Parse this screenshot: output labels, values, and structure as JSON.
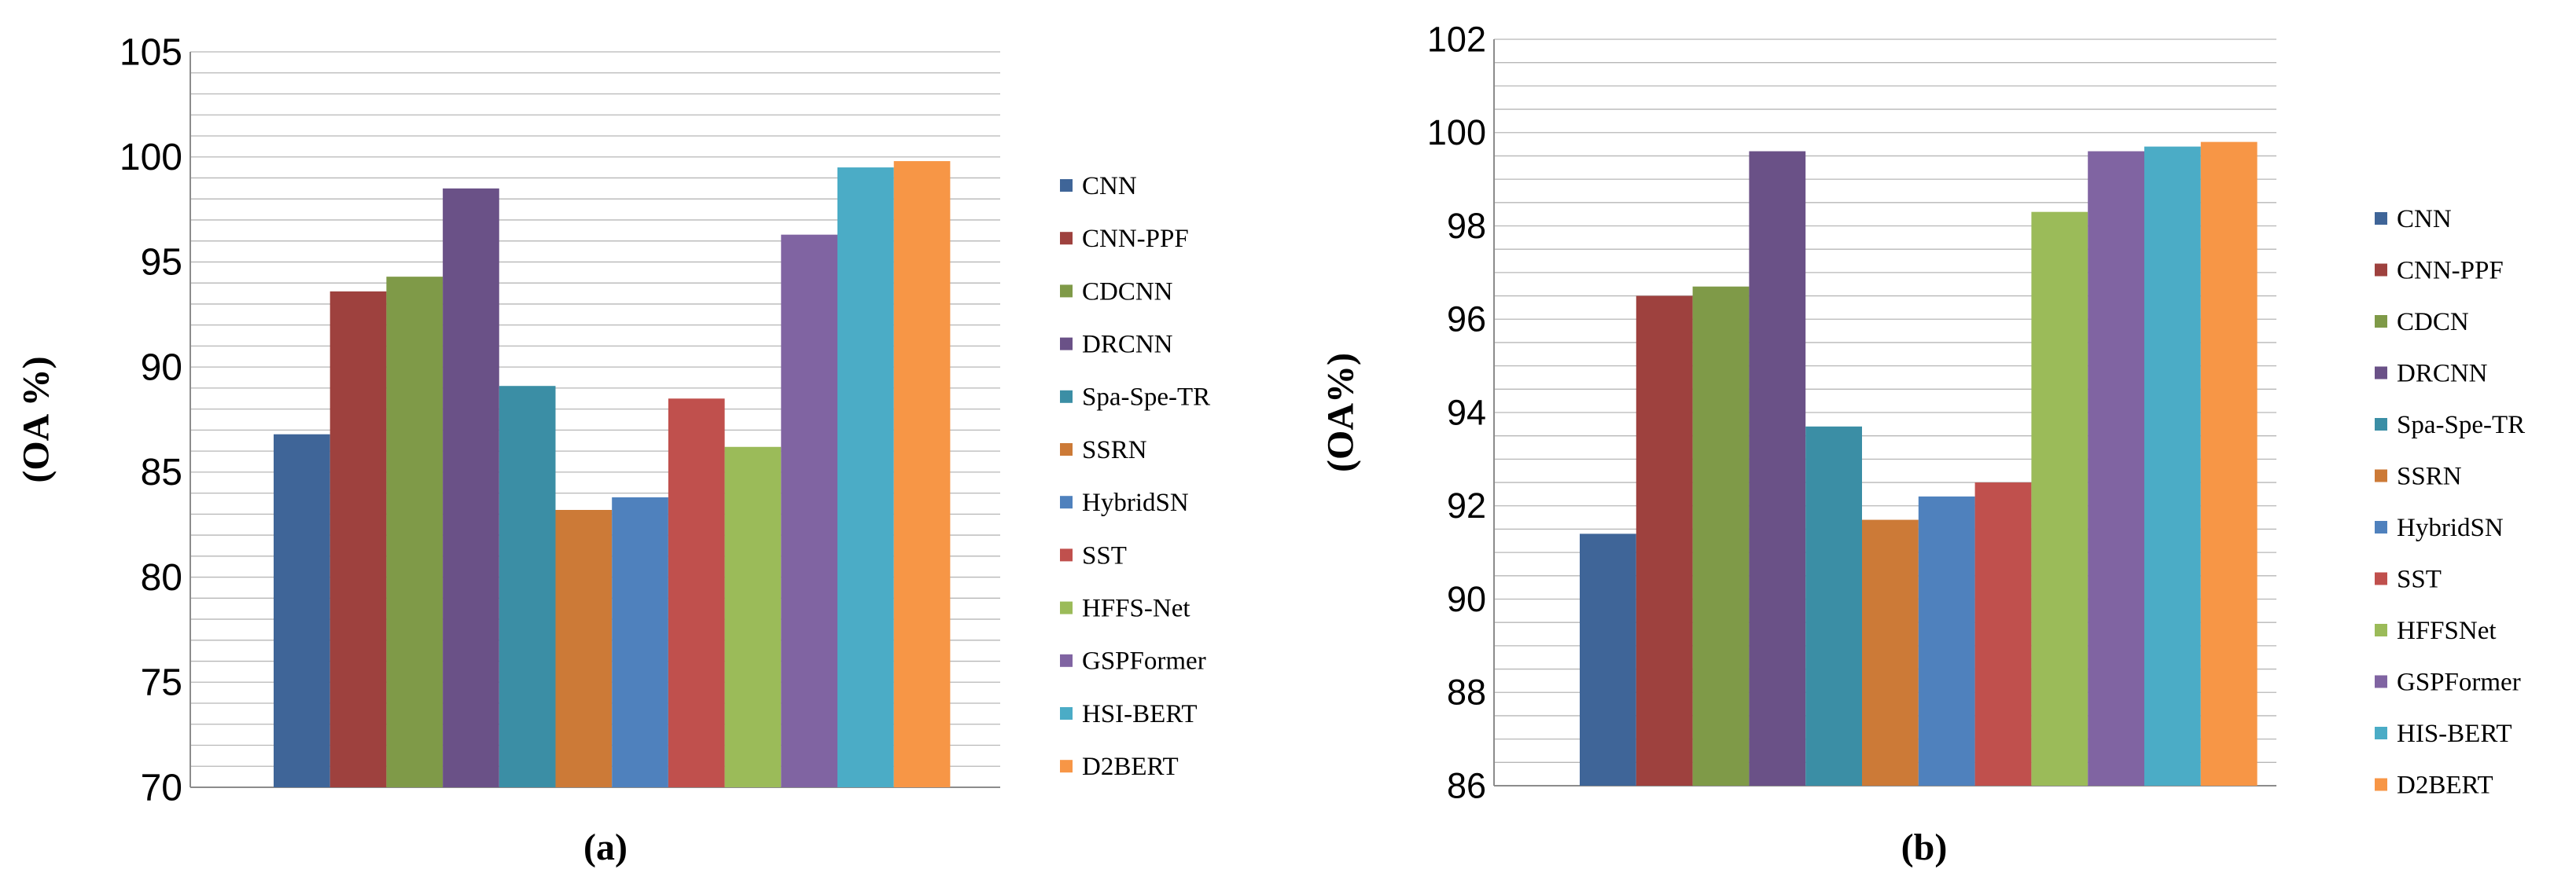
{
  "chart_data": [
    {
      "type": "bar",
      "ylabel": "(OA %)",
      "caption": "(a)",
      "ylim": [
        70,
        105
      ],
      "yticks": [
        "70",
        "75",
        "80",
        "85",
        "90",
        "95",
        "100",
        "105"
      ],
      "yticks_values": [
        70,
        75,
        80,
        85,
        90,
        95,
        100,
        105
      ],
      "grid": true,
      "legend_position": "right",
      "series": [
        {
          "name": "CNN",
          "value": 86.8,
          "color": "#3f6598"
        },
        {
          "name": "CNN-PPF",
          "value": 93.6,
          "color": "#9e413e"
        },
        {
          "name": "CDCNN",
          "value": 94.3,
          "color": "#7f9a48"
        },
        {
          "name": "DRCNN",
          "value": 98.5,
          "color": "#6a5187"
        },
        {
          "name": "Spa-Spe-TR",
          "value": 89.1,
          "color": "#3b8ea5"
        },
        {
          "name": "SSRN",
          "value": 83.2,
          "color": "#cc7a37"
        },
        {
          "name": "HybridSN",
          "value": 83.8,
          "color": "#4f81bd"
        },
        {
          "name": "SST",
          "value": 88.5,
          "color": "#c0504d"
        },
        {
          "name": "HFFS-Net",
          "value": 86.2,
          "color": "#9bbb59"
        },
        {
          "name": "GSPFormer",
          "value": 96.3,
          "color": "#8064a2"
        },
        {
          "name": "HSI-BERT",
          "value": 99.5,
          "color": "#4bacc6"
        },
        {
          "name": "D2BERT",
          "value": 99.8,
          "color": "#f79646"
        }
      ]
    },
    {
      "type": "bar",
      "ylabel": "(OA%)",
      "caption": "(b)",
      "ylim": [
        86,
        102
      ],
      "yticks": [
        "86",
        "88",
        "90",
        "92",
        "94",
        "96",
        "98",
        "100",
        "102"
      ],
      "yticks_values": [
        86,
        88,
        90,
        92,
        94,
        96,
        98,
        100,
        102
      ],
      "grid": true,
      "legend_position": "right",
      "series": [
        {
          "name": "CNN",
          "value": 91.4,
          "color": "#3f6598"
        },
        {
          "name": "CNN-PPF",
          "value": 96.5,
          "color": "#9e413e"
        },
        {
          "name": "CDCN",
          "value": 96.7,
          "color": "#7f9a48"
        },
        {
          "name": "DRCNN",
          "value": 99.6,
          "color": "#6a5187"
        },
        {
          "name": "Spa-Spe-TR",
          "value": 93.7,
          "color": "#3b8ea5"
        },
        {
          "name": "SSRN",
          "value": 91.7,
          "color": "#cc7a37"
        },
        {
          "name": "HybridSN",
          "value": 92.2,
          "color": "#4f81bd"
        },
        {
          "name": "SST",
          "value": 92.5,
          "color": "#c0504d"
        },
        {
          "name": "HFFSNet",
          "value": 98.3,
          "color": "#9bbb59"
        },
        {
          "name": "GSPFormer",
          "value": 99.6,
          "color": "#8064a2"
        },
        {
          "name": "HIS-BERT",
          "value": 99.7,
          "color": "#4bacc6"
        },
        {
          "name": "D2BERT",
          "value": 99.8,
          "color": "#f79646"
        }
      ]
    }
  ]
}
